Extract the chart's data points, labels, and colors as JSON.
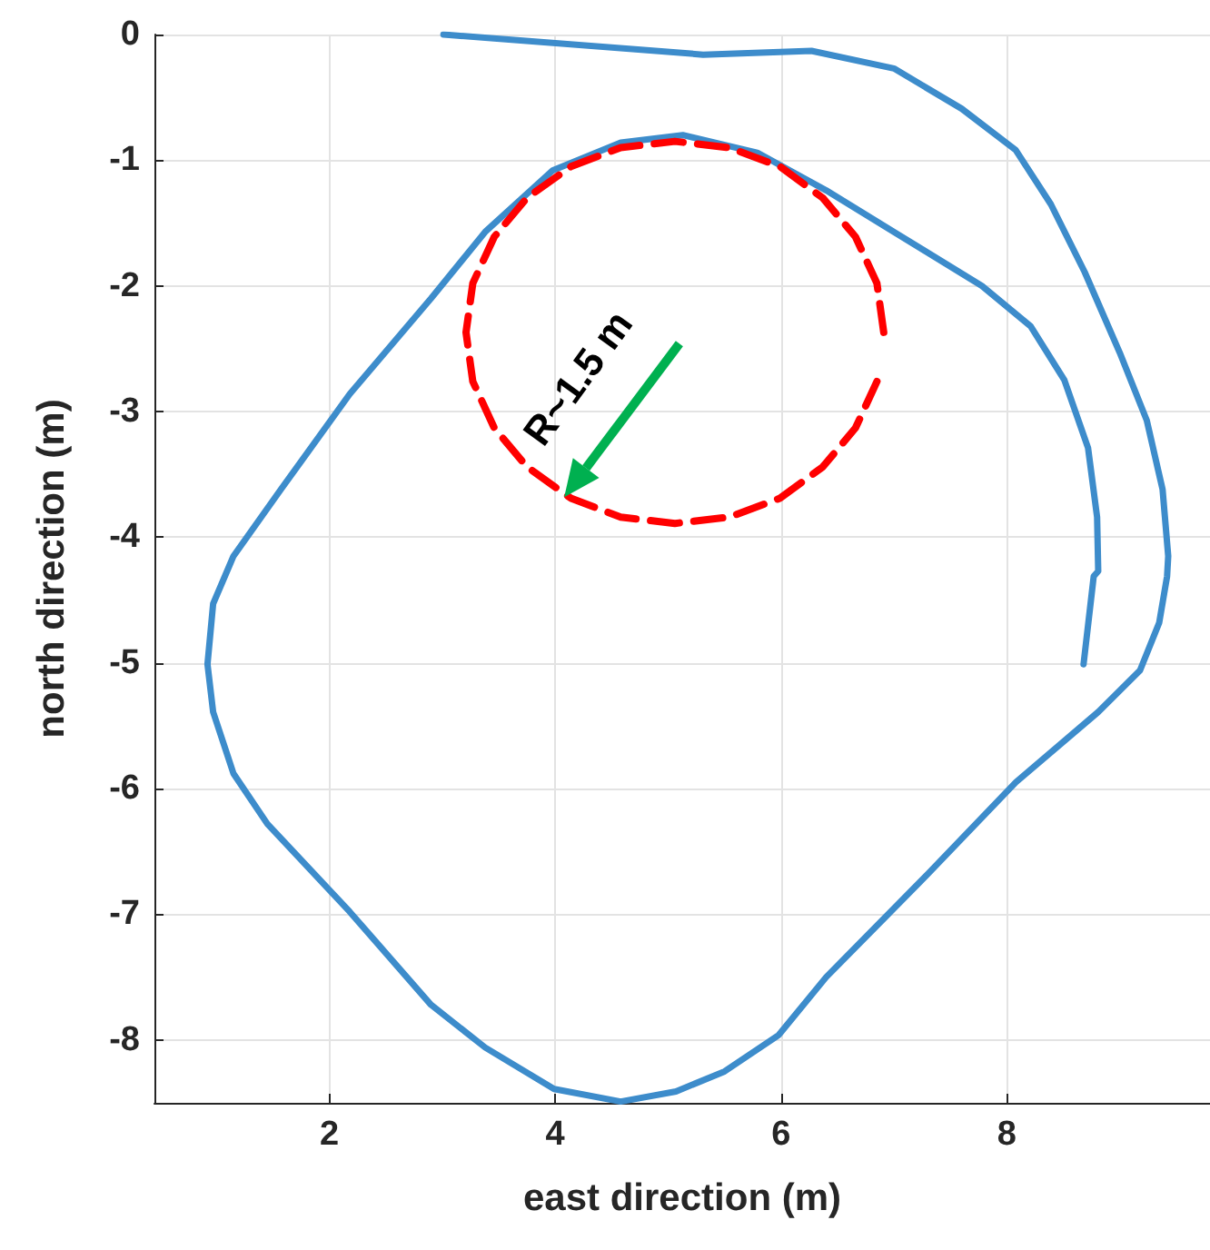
{
  "chart_data": {
    "type": "line",
    "xlabel": "east direction (m)",
    "ylabel": "north direction (m)",
    "xlim": [
      0.45,
      9.8
    ],
    "ylim": [
      -8.5,
      0
    ],
    "xticks": [
      2,
      4,
      6,
      8
    ],
    "yticks": [
      -8,
      -7,
      -6,
      -5,
      -4,
      -3,
      -2,
      -1,
      0
    ],
    "grid": true,
    "marker": "none",
    "annotations": [
      "R~1.5 m"
    ],
    "series": [
      {
        "color": "#3d8ccb",
        "line_style": "solid",
        "x": [
          3.01,
          5.31,
          6.27,
          7.0,
          7.6,
          8.08,
          8.39,
          8.69,
          9.0,
          9.24,
          9.38,
          9.43,
          9.42,
          9.35,
          9.18,
          8.81,
          8.08,
          7.3,
          6.4,
          5.98,
          5.5,
          5.07,
          4.58,
          3.99,
          3.38,
          2.9,
          2.18,
          1.45,
          1.15,
          0.97,
          0.92,
          0.97,
          1.15,
          1.57,
          2.18,
          2.9,
          3.38,
          3.98,
          4.58,
          5.13,
          5.79,
          6.4,
          7.18,
          7.78,
          8.21,
          8.51,
          8.72,
          8.8,
          8.81,
          8.77,
          8.68
        ],
        "values": [
          0,
          -0.16,
          -0.13,
          -0.27,
          -0.59,
          -0.92,
          -1.35,
          -1.89,
          -2.53,
          -3.07,
          -3.62,
          -4.15,
          -4.31,
          -4.68,
          -5.06,
          -5.39,
          -5.95,
          -6.68,
          -7.5,
          -7.96,
          -8.25,
          -8.41,
          -8.49,
          -8.39,
          -8.06,
          -7.72,
          -6.98,
          -6.28,
          -5.88,
          -5.39,
          -5.01,
          -4.53,
          -4.15,
          -3.62,
          -2.86,
          -2.1,
          -1.57,
          -1.08,
          -0.86,
          -0.8,
          -0.94,
          -1.24,
          -1.67,
          -2.0,
          -2.32,
          -2.75,
          -3.29,
          -3.84,
          -4.27,
          -4.31,
          -5.01
        ]
      },
      {
        "color": "#ff0000",
        "line_style": "dashed",
        "x": [
          6.91,
          6.85,
          6.66,
          6.37,
          5.99,
          5.54,
          5.06,
          4.58,
          4.14,
          3.75,
          3.46,
          3.27,
          3.21,
          3.27,
          3.46,
          3.75,
          4.14,
          4.58,
          5.06,
          5.54,
          5.99,
          6.37,
          6.66,
          6.85
        ],
        "values": [
          -2.37,
          -1.98,
          -1.61,
          -1.3,
          -1.05,
          -0.9,
          -0.85,
          -0.9,
          -1.05,
          -1.3,
          -1.61,
          -1.98,
          -2.37,
          -2.76,
          -3.13,
          -3.44,
          -3.69,
          -3.84,
          -3.89,
          -3.84,
          -3.69,
          -3.44,
          -3.13,
          -2.76
        ]
      }
    ]
  }
}
